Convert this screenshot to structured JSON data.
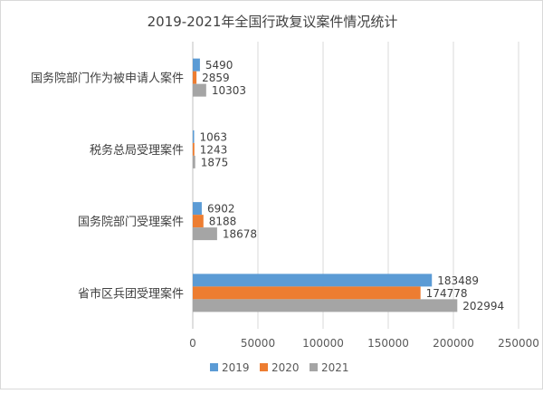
{
  "chart_data": {
    "type": "bar",
    "orientation": "horizontal",
    "title": "2019-2021年全国行政复议案件情况统计",
    "categories": [
      "国务院部门作为被申请人案件",
      "税务总局受理案件",
      "国务院部门受理案件",
      "省市区兵团受理案件"
    ],
    "series": [
      {
        "name": "2019",
        "color": "#5b9bd5",
        "values": [
          5490,
          1063,
          6902,
          183489
        ]
      },
      {
        "name": "2020",
        "color": "#ed7d31",
        "values": [
          2859,
          1243,
          8188,
          174778
        ]
      },
      {
        "name": "2021",
        "color": "#a5a5a5",
        "values": [
          10303,
          1875,
          18678,
          202994
        ]
      }
    ],
    "xlim": [
      0,
      250000
    ],
    "xticks": [
      0,
      50000,
      100000,
      150000,
      200000,
      250000
    ],
    "grid": "vertical",
    "legend": "bottom",
    "data_labels": true
  }
}
